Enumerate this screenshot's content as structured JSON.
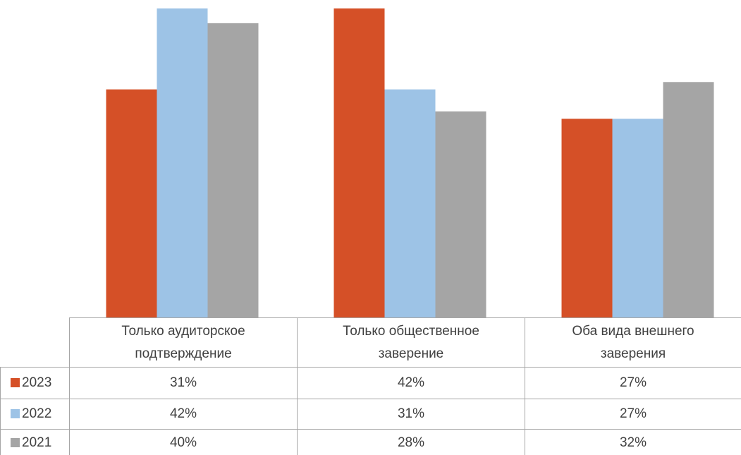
{
  "chart_data": {
    "type": "bar",
    "categories": [
      "Только аудиторское подтверждение",
      "Только общественное заверение",
      "Оба вида внешнего заверения"
    ],
    "series": [
      {
        "name": "2023",
        "color": "#d55027",
        "values": [
          31,
          42,
          27
        ],
        "value_labels": [
          "31%",
          "42%",
          "27%"
        ]
      },
      {
        "name": "2022",
        "color": "#9dc3e6",
        "values": [
          42,
          31,
          27
        ],
        "value_labels": [
          "42%",
          "31%",
          "27%"
        ]
      },
      {
        "name": "2021",
        "color": "#a5a5a5",
        "values": [
          40,
          28,
          32
        ],
        "value_labels": [
          "40%",
          "28%",
          "32%"
        ]
      }
    ]
  }
}
